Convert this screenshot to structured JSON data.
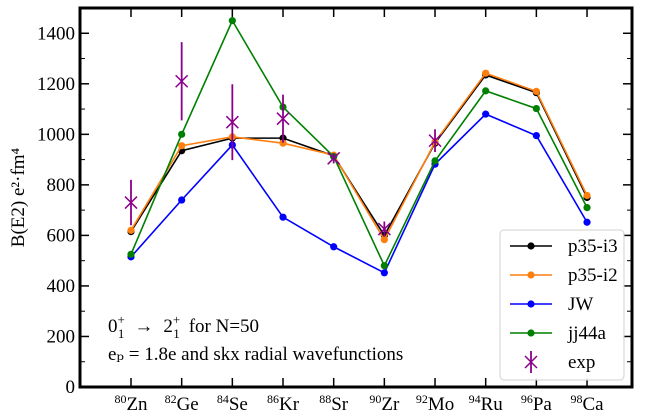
{
  "chart_data": {
    "type": "line",
    "ylabel": "B(E2) e²·fm⁴",
    "ylim": [
      0,
      1500
    ],
    "yticks": [
      0,
      200,
      400,
      600,
      800,
      1000,
      1200,
      1400
    ],
    "categories": [
      {
        "mass": "80",
        "symbol": "Zn"
      },
      {
        "mass": "82",
        "symbol": "Ge"
      },
      {
        "mass": "84",
        "symbol": "Se"
      },
      {
        "mass": "86",
        "symbol": "Kr"
      },
      {
        "mass": "88",
        "symbol": "Sr"
      },
      {
        "mass": "90",
        "symbol": "Zr"
      },
      {
        "mass": "92",
        "symbol": "Mo"
      },
      {
        "mass": "94",
        "symbol": "Ru"
      },
      {
        "mass": "96",
        "symbol": "Pa"
      },
      {
        "mass": "98",
        "symbol": "Ca"
      }
    ],
    "series": [
      {
        "name": "p35-i3",
        "color": "#000000",
        "values": [
          615,
          935,
          985,
          985,
          915,
          600,
          965,
          1235,
          1165,
          750
        ]
      },
      {
        "name": "p35-i2",
        "color": "#ff7f0e",
        "values": [
          620,
          955,
          990,
          965,
          918,
          583,
          970,
          1242,
          1170,
          758
        ]
      },
      {
        "name": "JW",
        "color": "#0000ff",
        "values": [
          515,
          740,
          958,
          672,
          555,
          452,
          882,
          1080,
          995,
          652
        ]
      },
      {
        "name": "jj44a",
        "color": "#008000",
        "values": [
          525,
          1000,
          1450,
          1108,
          912,
          480,
          895,
          1172,
          1102,
          710
        ]
      }
    ],
    "experiment": {
      "name": "exp",
      "color": "#8b008b",
      "points": [
        {
          "index": 0,
          "value": 730,
          "err": 90
        },
        {
          "index": 1,
          "value": 1210,
          "err": 155
        },
        {
          "index": 2,
          "value": 1048,
          "err": 150
        },
        {
          "index": 3,
          "value": 1062,
          "err": 95
        },
        {
          "index": 4,
          "value": 905,
          "err": 20
        },
        {
          "index": 5,
          "value": 625,
          "err": 30
        },
        {
          "index": 6,
          "value": 975,
          "err": 45
        }
      ]
    },
    "annotation": {
      "line1_state_from": "0",
      "line1_state_from_sub": "1",
      "line1_state_from_sup": "+",
      "line1_arrow": "→",
      "line1_state_to": "2",
      "line1_state_to_sub": "1",
      "line1_state_to_sup": "+",
      "line1_suffix": "for N=50",
      "line2": "eₚ = 1.8e and skx radial wavefunctions"
    },
    "legend_position": "lower-right",
    "grid": false
  }
}
